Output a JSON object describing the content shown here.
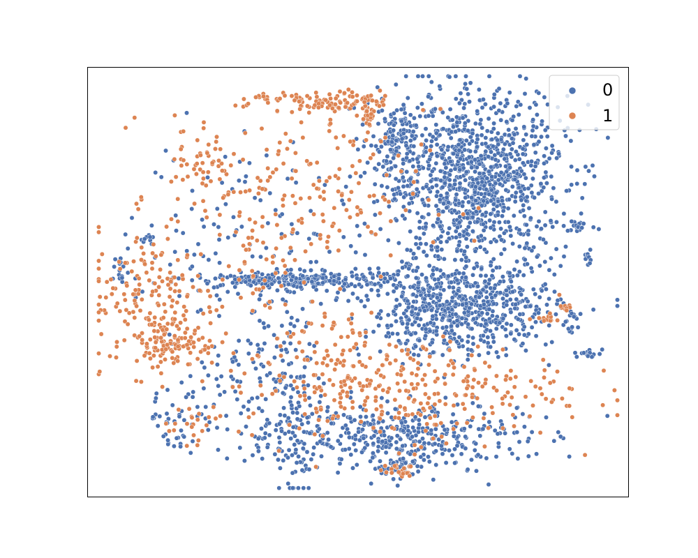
{
  "chart_data": {
    "type": "scatter",
    "title": "",
    "xlabel": "",
    "ylabel": "",
    "xlim": [
      0,
      100
    ],
    "ylim": [
      0,
      100
    ],
    "grid": false,
    "axes_ticks": false,
    "legend": {
      "placement": "top-right",
      "entries": [
        {
          "label": "0",
          "color": "#4c72b0"
        },
        {
          "label": "1",
          "color": "#dd8452"
        }
      ]
    },
    "series": [
      {
        "name": "0",
        "color": "#4c72b0",
        "clusters": [
          {
            "cx": 71.5,
            "cy": 74,
            "sx": 8.5,
            "sy": 10,
            "n": 1100
          },
          {
            "cx": 69,
            "cy": 44,
            "sx": 9,
            "sy": 5.5,
            "n": 700
          },
          {
            "cx": 56.5,
            "cy": 14,
            "sx": 12,
            "sy": 4,
            "n": 420
          },
          {
            "cx": 39,
            "cy": 50.5,
            "sx": 10,
            "sy": 1.0,
            "n": 260
          },
          {
            "cx": 57,
            "cy": 82.5,
            "sx": 2.5,
            "sy": 4,
            "n": 120
          },
          {
            "cx": 37,
            "cy": 21,
            "sx": 3,
            "sy": 11,
            "n": 120
          },
          {
            "cx": 30,
            "cy": 62,
            "sx": 10,
            "sy": 12,
            "n": 120
          },
          {
            "cx": 29,
            "cy": 30,
            "sx": 6,
            "sy": 9,
            "n": 90
          },
          {
            "cx": 17,
            "cy": 17,
            "sx": 3,
            "sy": 3.5,
            "n": 40
          },
          {
            "cx": 6,
            "cy": 52.5,
            "sx": 1,
            "sy": 1.5,
            "n": 15
          },
          {
            "cx": 11,
            "cy": 60,
            "sx": 0.8,
            "sy": 1,
            "n": 10
          },
          {
            "cx": 91,
            "cy": 63,
            "sx": 1.0,
            "sy": 0.6,
            "n": 18
          },
          {
            "cx": 92.5,
            "cy": 33.5,
            "sx": 1.4,
            "sy": 0.6,
            "n": 15
          },
          {
            "cx": 92.5,
            "cy": 55.5,
            "sx": 0.4,
            "sy": 1,
            "n": 10
          },
          {
            "cx": 57,
            "cy": 6.5,
            "sx": 1.6,
            "sy": 1,
            "n": 35
          },
          {
            "cx": 90,
            "cy": 41,
            "sx": 0.6,
            "sy": 2,
            "n": 12
          }
        ]
      },
      {
        "name": "1",
        "color": "#dd8452",
        "clusters": [
          {
            "cx": 44,
            "cy": 92,
            "sx": 7,
            "sy": 1.2,
            "n": 110
          },
          {
            "cx": 38,
            "cy": 70,
            "sx": 12,
            "sy": 10,
            "n": 190
          },
          {
            "cx": 12,
            "cy": 46,
            "sx": 6,
            "sy": 8,
            "n": 170
          },
          {
            "cx": 16,
            "cy": 35.5,
            "sx": 4,
            "sy": 2.5,
            "n": 90
          },
          {
            "cx": 58,
            "cy": 25,
            "sx": 15,
            "sy": 6,
            "n": 300
          },
          {
            "cx": 44,
            "cy": 33,
            "sx": 6,
            "sy": 8,
            "n": 70
          },
          {
            "cx": 57,
            "cy": 6.5,
            "sx": 1.6,
            "sy": 1,
            "n": 22
          },
          {
            "cx": 20,
            "cy": 15,
            "sx": 3,
            "sy": 3,
            "n": 22
          },
          {
            "cx": 85,
            "cy": 41.5,
            "sx": 0.8,
            "sy": 0.5,
            "n": 12
          },
          {
            "cx": 88.5,
            "cy": 44.5,
            "sx": 0.6,
            "sy": 1.2,
            "n": 10
          },
          {
            "cx": 21,
            "cy": 79.5,
            "sx": 2.5,
            "sy": 5,
            "n": 45
          },
          {
            "cx": 31.5,
            "cy": 53,
            "sx": 3,
            "sy": 5,
            "n": 30
          },
          {
            "cx": 52,
            "cy": 89,
            "sx": 0.6,
            "sy": 2,
            "n": 25
          }
        ]
      }
    ]
  }
}
